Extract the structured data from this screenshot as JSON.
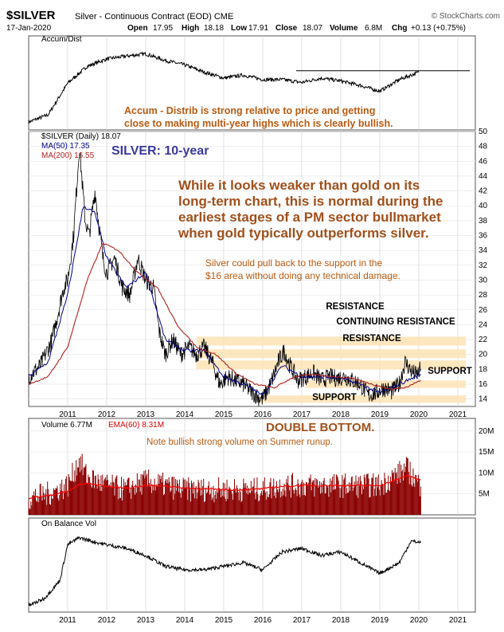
{
  "header": {
    "symbol": "$SILVER",
    "description": "Silver - Continuous Contract (EOD) CME",
    "source": "© StockCharts.com",
    "date": "17-Jan-2020",
    "open_label": "Open",
    "open": "17.95",
    "high_label": "High",
    "high": "18.18",
    "low_label": "Low",
    "low": "17.91",
    "close_label": "Close",
    "close": "18.07",
    "volume_label": "Volume",
    "volume": "6.8M",
    "change_label": "Chg",
    "change": "+0.13 (+0.75%)"
  },
  "colors": {
    "price": "#000000",
    "ma50": "#00008b",
    "ma200": "#b22222",
    "annotation": "#8b4513",
    "title_blue": "#3a3aa0",
    "band": "#fde3b4",
    "volume": "#8b0000",
    "ema": "#ff0000",
    "grid": "#cccccc"
  },
  "chart_data": [
    {
      "type": "line",
      "panel": "accum-dist",
      "legend": "Accum/Dist",
      "annotation": "Accum - Distrib is strong relative to price and getting close to making multi-year highs which is clearly bullish.",
      "x": [
        2010.0,
        2010.5,
        2011.0,
        2011.5,
        2012.0,
        2012.5,
        2013.0,
        2013.5,
        2014.0,
        2014.5,
        2015.0,
        2015.5,
        2016.0,
        2016.5,
        2017.0,
        2017.5,
        2018.0,
        2018.5,
        2019.0,
        2019.5,
        2020.0
      ],
      "values": [
        0.02,
        0.12,
        0.55,
        0.78,
        0.88,
        0.92,
        0.95,
        0.86,
        0.8,
        0.7,
        0.62,
        0.66,
        0.6,
        0.6,
        0.56,
        0.62,
        0.58,
        0.52,
        0.44,
        0.6,
        0.7
      ]
    },
    {
      "type": "line",
      "panel": "price",
      "title": "SILVER: 10-year",
      "legend": [
        {
          "name": "$SILVER (Daily) 18.07"
        },
        {
          "name": "MA(50) 17.35"
        },
        {
          "name": "MA(200) 16.55"
        }
      ],
      "y_ticks": [
        14,
        16,
        18,
        20,
        22,
        24,
        26,
        28,
        30,
        32,
        34,
        36,
        38,
        40,
        42,
        44,
        46,
        48,
        50
      ],
      "x_ticks": [
        "2011",
        "2012",
        "2013",
        "2014",
        "2015",
        "2016",
        "2017",
        "2018",
        "2019",
        "2020",
        "2021"
      ],
      "ylim": [
        13,
        50
      ],
      "series": [
        {
          "name": "$SILVER",
          "x": [
            2010.0,
            2010.3,
            2010.6,
            2010.9,
            2011.0,
            2011.15,
            2011.3,
            2011.45,
            2011.55,
            2011.7,
            2011.9,
            2012.0,
            2012.2,
            2012.4,
            2012.6,
            2012.8,
            2013.0,
            2013.2,
            2013.35,
            2013.5,
            2013.7,
            2013.9,
            2014.1,
            2014.3,
            2014.5,
            2014.7,
            2014.9,
            2015.1,
            2015.3,
            2015.5,
            2015.7,
            2015.9,
            2016.0,
            2016.2,
            2016.4,
            2016.55,
            2016.7,
            2016.9,
            2017.1,
            2017.3,
            2017.5,
            2017.7,
            2017.9,
            2018.1,
            2018.3,
            2018.5,
            2018.7,
            2018.9,
            2019.1,
            2019.3,
            2019.5,
            2019.65,
            2019.8,
            2019.95,
            2020.05
          ],
          "values": [
            17,
            18.5,
            22,
            29,
            30,
            36,
            48,
            38,
            36,
            42,
            33,
            31,
            33,
            29,
            28,
            33,
            30,
            29,
            23,
            20,
            22,
            20,
            21,
            20,
            21,
            19,
            16,
            17,
            16.5,
            16,
            15,
            14.2,
            14,
            16,
            19,
            20.5,
            18.5,
            16.5,
            17,
            17.5,
            16.5,
            17,
            16.8,
            17,
            16.5,
            16,
            14.5,
            14.8,
            15.5,
            15,
            16,
            19,
            17.8,
            17.2,
            18.07
          ]
        },
        {
          "name": "MA(50)",
          "x": [
            2010.0,
            2010.5,
            2011.0,
            2011.4,
            2011.7,
            2012.0,
            2012.5,
            2013.0,
            2013.5,
            2014.0,
            2014.5,
            2015.0,
            2015.5,
            2016.0,
            2016.5,
            2017.0,
            2017.5,
            2018.0,
            2018.5,
            2019.0,
            2019.5,
            2020.05
          ],
          "values": [
            17,
            19,
            28,
            40,
            39,
            33,
            29,
            31,
            22,
            20.5,
            20.5,
            17,
            16,
            14.5,
            18.5,
            17,
            17,
            16.8,
            16,
            14.8,
            16,
            17.35
          ]
        },
        {
          "name": "MA(200)",
          "x": [
            2010.0,
            2010.5,
            2011.0,
            2011.5,
            2011.9,
            2012.3,
            2012.8,
            2013.3,
            2013.8,
            2014.3,
            2014.8,
            2015.3,
            2015.8,
            2016.3,
            2016.8,
            2017.3,
            2017.8,
            2018.3,
            2018.8,
            2019.3,
            2019.7,
            2020.05
          ],
          "values": [
            16,
            17,
            21,
            30,
            35,
            34,
            31,
            29,
            24,
            21,
            20,
            17.5,
            16,
            15.5,
            17,
            17.3,
            17,
            16.8,
            16,
            15.3,
            15.6,
            16.55
          ]
        }
      ],
      "bands": [
        {
          "label": "RESISTANCE",
          "low": 21.2,
          "high": 22.4
        },
        {
          "label": "CONTINUING RESISTANCE",
          "low": 19.5,
          "high": 20.7
        },
        {
          "label": "RESISTANCE",
          "low": 18.0,
          "high": 19.2
        },
        {
          "label": "SUPPORT",
          "low": 15.5,
          "high": 16.5
        },
        {
          "label": "SUPPORT",
          "low": 13.5,
          "high": 14.5
        }
      ],
      "annotations": [
        "While it looks weaker than gold on its long-term chart, this is normal during the earliest stages of a PM sector bullmarket when gold typically outperforms silver.",
        "Silver could pull back to the support in the $16 area without doing any technical damage."
      ]
    },
    {
      "type": "bar",
      "panel": "volume",
      "legend": [
        {
          "name": "Volume 6.77M"
        },
        {
          "name": "EMA(60) 8.31M"
        }
      ],
      "labels": [
        "DOUBLE BOTTOM.",
        "Note bullish strong volume on Summer runup."
      ],
      "y_ticks": [
        "5M",
        "10M",
        "15M",
        "20M"
      ],
      "ylim": [
        0,
        23
      ],
      "x": [
        2010.0,
        2010.5,
        2011.0,
        2011.3,
        2011.5,
        2012.0,
        2012.5,
        2013.0,
        2013.5,
        2014.0,
        2014.5,
        2015.0,
        2015.5,
        2016.0,
        2016.5,
        2017.0,
        2017.5,
        2018.0,
        2018.5,
        2019.0,
        2019.5,
        2019.7,
        2020.05
      ],
      "values": [
        4,
        5,
        7,
        13,
        9,
        7,
        6,
        8,
        7,
        6,
        6,
        6,
        6,
        6,
        7,
        7,
        7,
        7,
        7,
        7,
        10,
        11,
        6.77
      ],
      "ema": [
        4,
        4.6,
        5.6,
        7.2,
        7.5,
        6.8,
        6.4,
        7,
        6.9,
        6.4,
        6.2,
        6,
        6,
        6.2,
        6.8,
        7,
        7,
        7,
        7,
        7,
        8.6,
        9.4,
        8.31
      ]
    },
    {
      "type": "line",
      "panel": "obv",
      "legend": "On Balance Vol",
      "x_ticks": [
        "2011",
        "2012",
        "2013",
        "2014",
        "2015",
        "2016",
        "2017",
        "2018",
        "2019",
        "2020",
        "2021"
      ],
      "x": [
        2010.0,
        2010.4,
        2010.8,
        2011.0,
        2011.3,
        2011.6,
        2012.0,
        2012.5,
        2013.0,
        2013.5,
        2014.0,
        2014.5,
        2015.0,
        2015.5,
        2016.0,
        2016.5,
        2017.0,
        2017.5,
        2018.0,
        2018.5,
        2019.0,
        2019.5,
        2019.8,
        2020.05
      ],
      "values": [
        0.0,
        0.1,
        0.35,
        0.85,
        0.95,
        0.9,
        0.85,
        0.8,
        0.7,
        0.55,
        0.5,
        0.5,
        0.55,
        0.6,
        0.5,
        0.75,
        0.8,
        0.7,
        0.75,
        0.6,
        0.45,
        0.6,
        0.9,
        0.88
      ]
    }
  ]
}
